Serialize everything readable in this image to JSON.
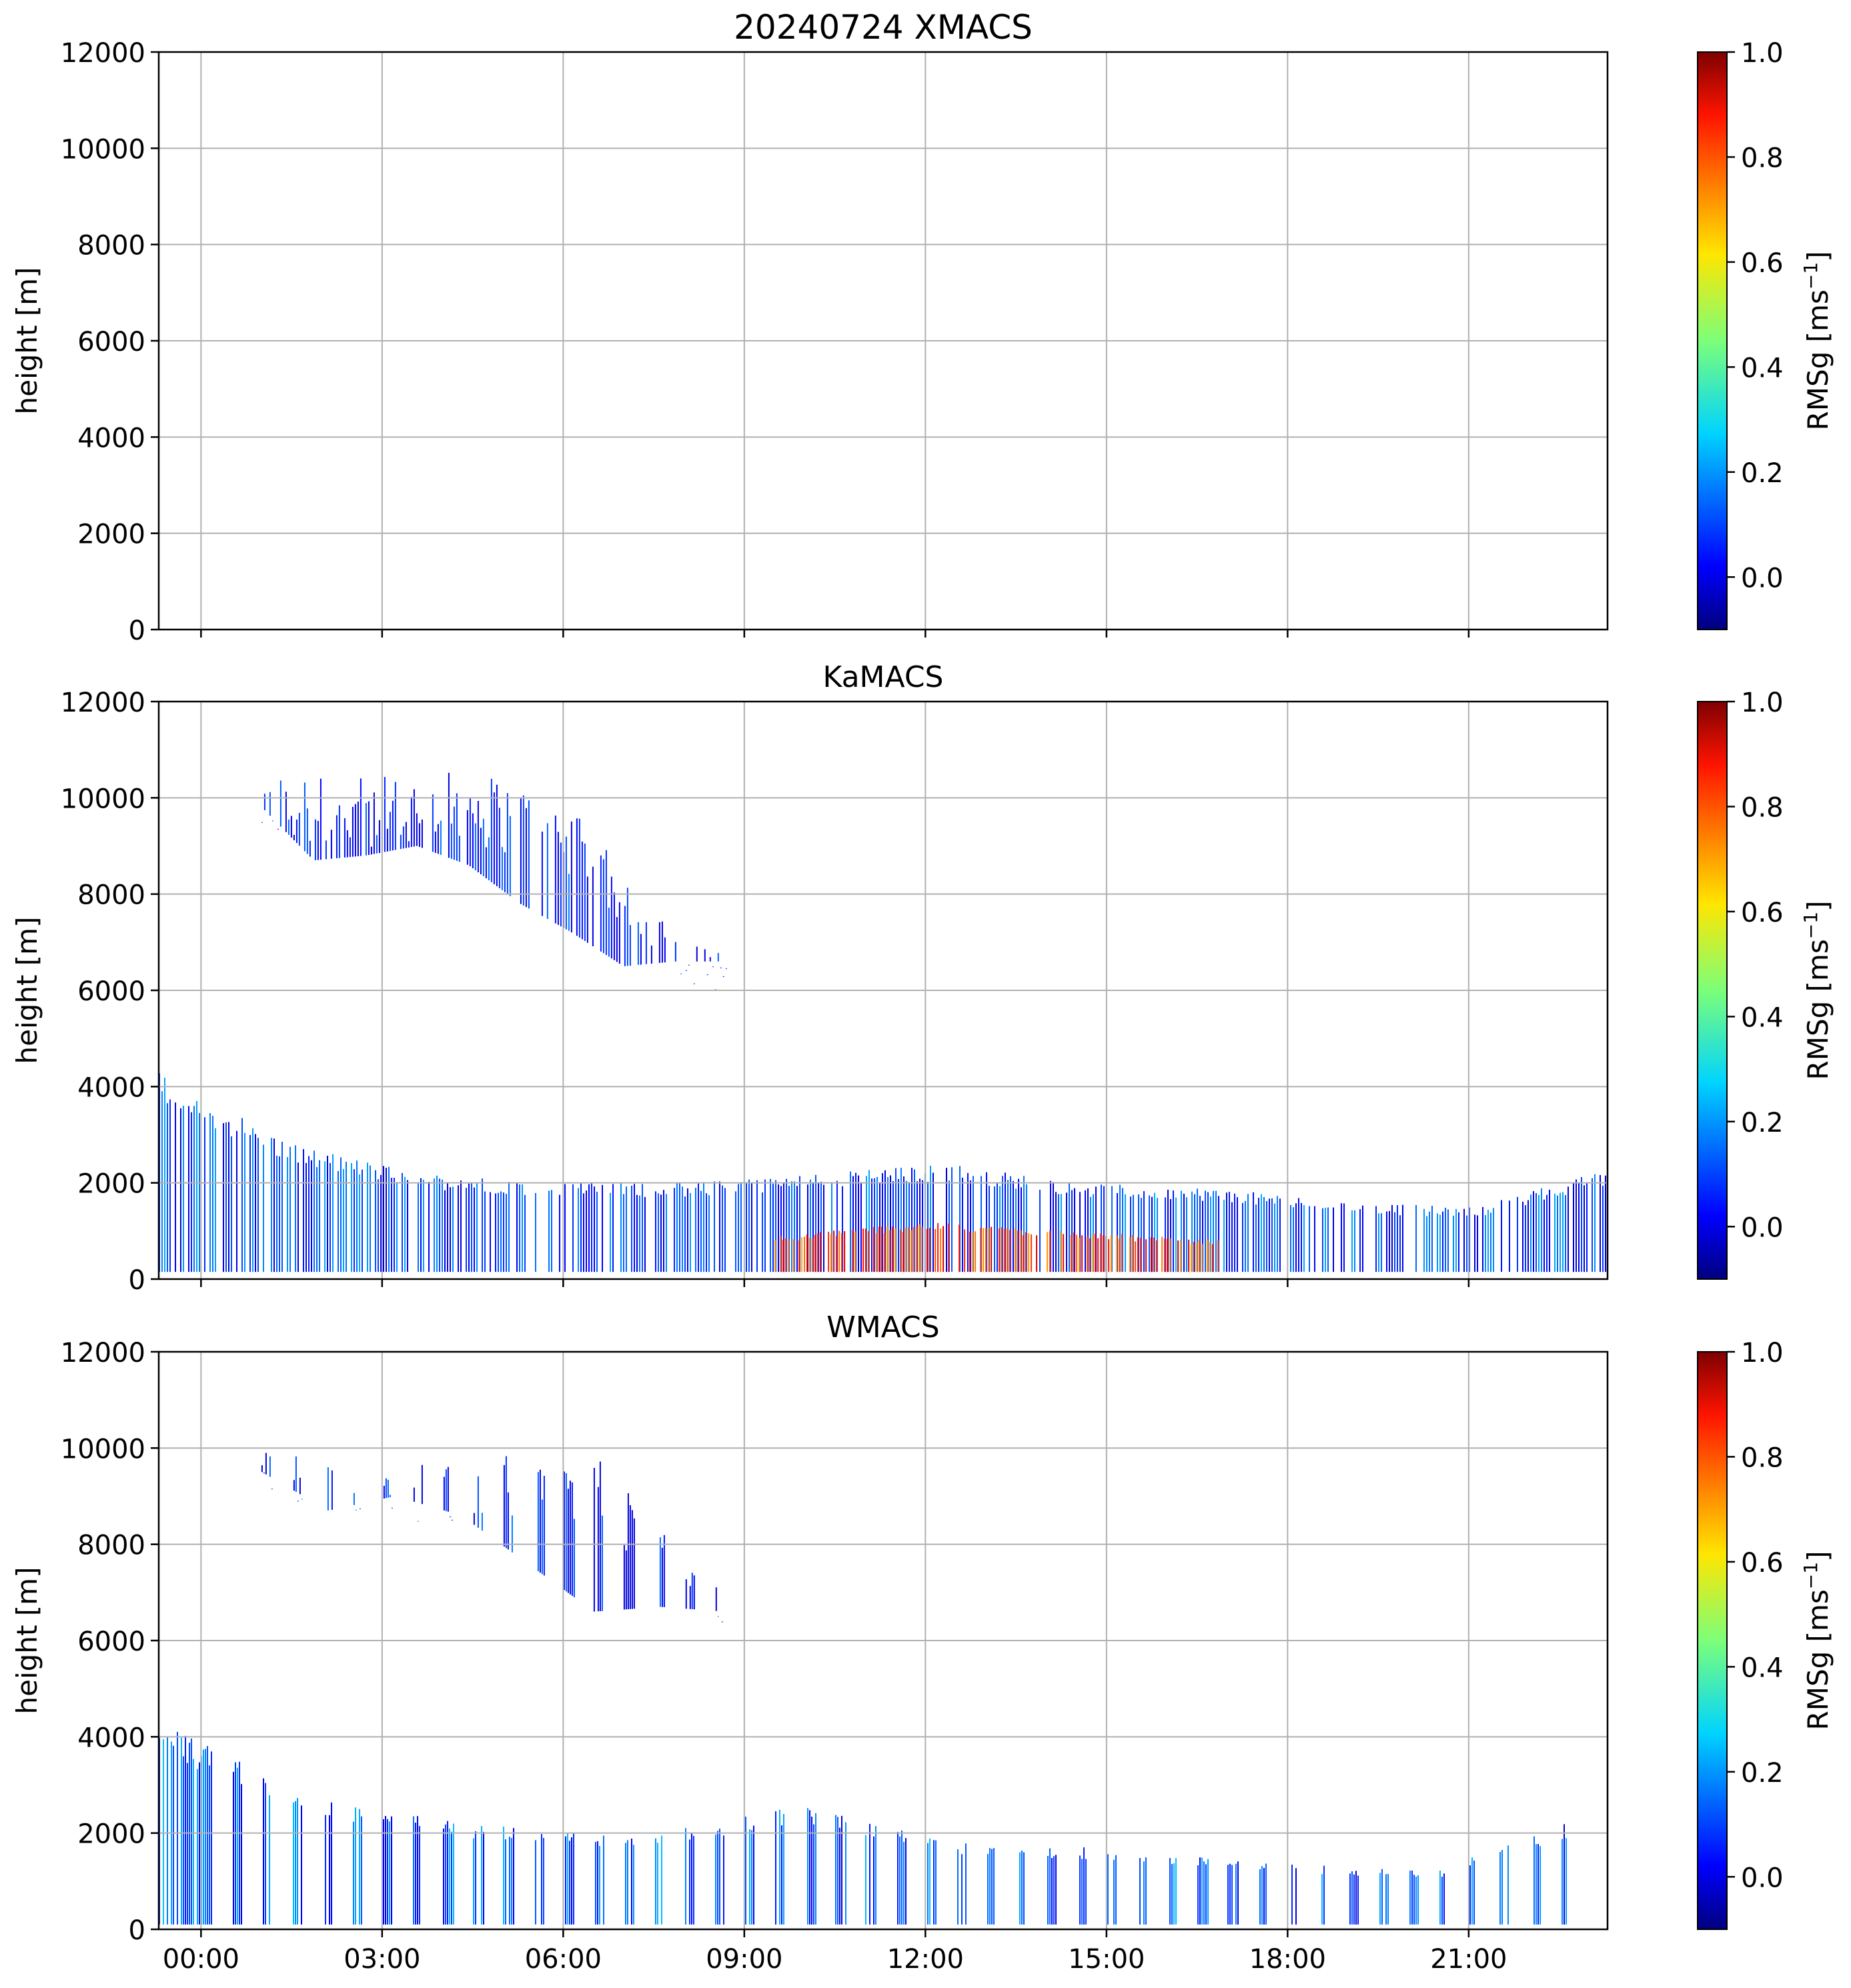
{
  "chart_data": [
    {
      "type": "heatmap",
      "title": "20240724 XMACS",
      "ylabel": "height [m]",
      "ylim": [
        0,
        12000
      ],
      "yticks": [
        "0",
        "2000",
        "4000",
        "6000",
        "8000",
        "10000",
        "12000"
      ],
      "xticks": [],
      "grid": true,
      "colorbar": {
        "label": "RMSg [ms",
        "label_sup": "−1",
        "label_close": "]",
        "range": [
          -0.1,
          1.0
        ],
        "ticks": [
          "0.0",
          "0.2",
          "0.4",
          "0.6",
          "0.8",
          "1.0"
        ],
        "colormap": "jet"
      },
      "regions": []
    },
    {
      "type": "heatmap",
      "title": "KaMACS",
      "ylabel": "height [m]",
      "ylim": [
        0,
        12000
      ],
      "yticks": [
        "0",
        "2000",
        "4000",
        "6000",
        "8000",
        "10000",
        "12000"
      ],
      "xticks": [],
      "grid": true,
      "colorbar": {
        "label": "RMSg [ms",
        "label_sup": "−1",
        "label_close": "]",
        "range": [
          -0.1,
          1.0
        ],
        "ticks": [
          "0.0",
          "0.2",
          "0.4",
          "0.6",
          "0.8",
          "1.0"
        ],
        "colormap": "jet"
      },
      "regions": [
        {
          "name": "upper-cloud",
          "time_h": [
            1.0,
            8.7
          ],
          "top_m": [
            10600,
            10500,
            10400,
            10500,
            10600,
            10300,
            9800,
            8500,
            7200,
            7000
          ],
          "bottom_m": [
            9800,
            8700,
            8800,
            9000,
            8600,
            7800,
            7200,
            6500,
            6600,
            6600
          ],
          "rmsg": 0.05
        },
        {
          "name": "low-cloud",
          "time_h": [
            -0.7,
            24
          ],
          "top_m": [
            4300,
            2800,
            2200,
            2000,
            2000,
            2200,
            2400,
            2000,
            1900,
            1600,
            1500,
            2300
          ],
          "bottom_m": [
            150,
            150,
            150,
            150,
            150,
            150,
            150,
            150,
            150,
            150,
            150,
            150
          ],
          "rmsg": 0.1
        },
        {
          "name": "enhanced-turbulence",
          "time_h": [
            9.5,
            17.0
          ],
          "top_m": [
            900,
            1200,
            1000,
            800
          ],
          "bottom_m": [
            150,
            150,
            150,
            150
          ],
          "rmsg": 0.8
        }
      ]
    },
    {
      "type": "heatmap",
      "title": "WMACS",
      "ylabel": "height [m]",
      "ylim": [
        0,
        12000
      ],
      "yticks": [
        "0",
        "2000",
        "4000",
        "6000",
        "8000",
        "10000",
        "12000"
      ],
      "xticks": [
        "00:00",
        "03:00",
        "06:00",
        "09:00",
        "12:00",
        "15:00",
        "18:00",
        "21:00"
      ],
      "x_tick_hours": [
        0,
        3,
        6,
        9,
        12,
        15,
        18,
        21
      ],
      "xlim_hours": [
        -0.7,
        23.3
      ],
      "grid": true,
      "colorbar": {
        "label": "RMSg [ms",
        "label_sup": "−1",
        "label_close": "]",
        "range": [
          -0.1,
          1.0
        ],
        "ticks": [
          "0.0",
          "0.2",
          "0.4",
          "0.6",
          "0.8",
          "1.0"
        ],
        "colormap": "jet"
      },
      "regions": [
        {
          "name": "upper-cloud-scans",
          "time_h": [
            1.0,
            8.7
          ],
          "top_m": [
            9900,
            9900,
            9900,
            9900,
            9900,
            9900,
            8300,
            7000
          ],
          "bottom_m": [
            9500,
            8700,
            9000,
            8600,
            7600,
            6600,
            6700,
            6600
          ],
          "rmsg": 0.05
        },
        {
          "name": "low-cloud-scans",
          "time_h": [
            -0.7,
            23.0
          ],
          "top_m": [
            4300,
            2700,
            2200,
            1900,
            2600,
            1800,
            1700,
            1400,
            1200,
            2400
          ],
          "bottom_m": [
            100,
            100,
            100,
            100,
            100,
            100,
            100,
            100,
            100,
            100
          ],
          "rmsg": 0.12
        }
      ]
    }
  ]
}
